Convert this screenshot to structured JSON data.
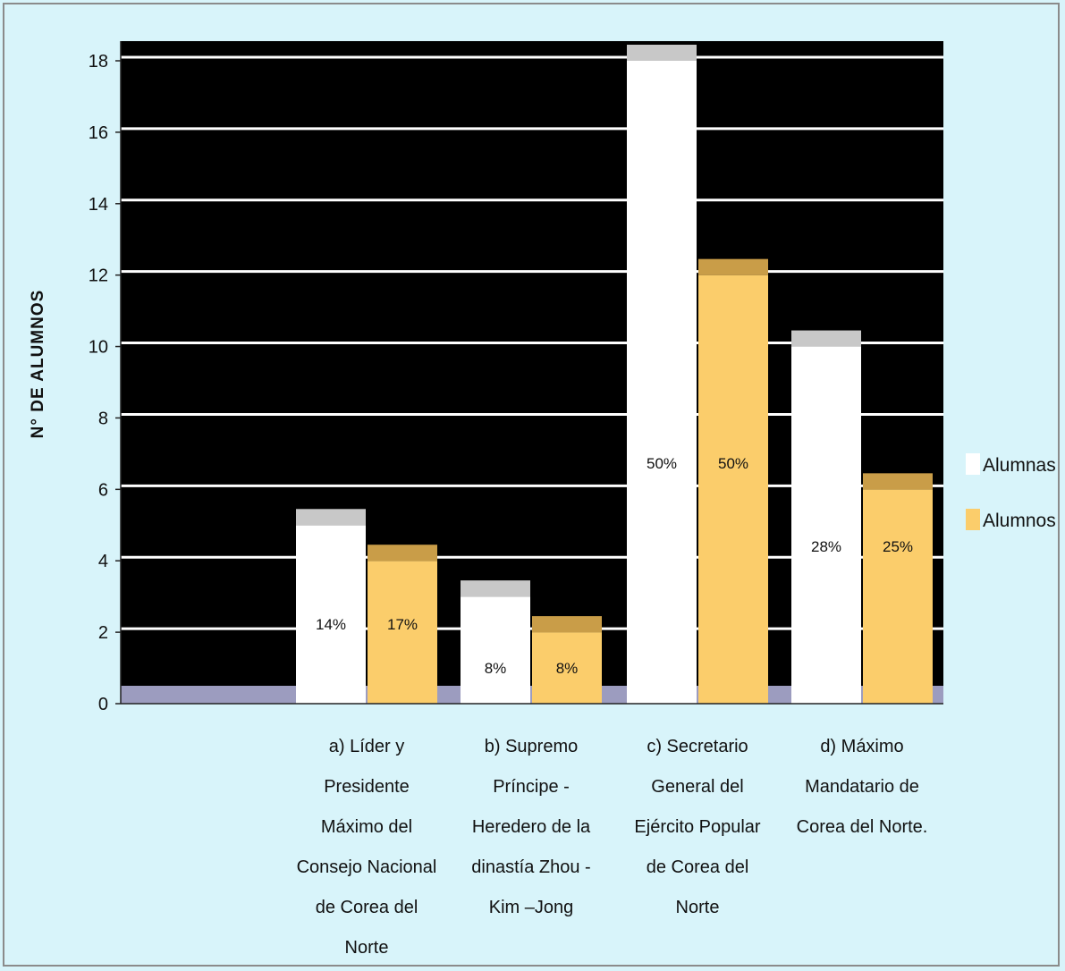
{
  "chart_data": {
    "type": "bar",
    "ylabel": "N° DE ALUMNOS",
    "ylim": [
      0,
      18
    ],
    "yticks": [
      "0",
      "2",
      "4",
      "6",
      "8",
      "10",
      "12",
      "14",
      "16",
      "18"
    ],
    "grid": true,
    "legend_position": "right",
    "categories": [
      [
        "a) Líder y",
        "Presidente",
        "Máximo del",
        "Consejo Nacional",
        "de Corea del",
        "Norte"
      ],
      [
        "b) Supremo",
        "Príncipe -",
        "Heredero de la",
        "dinastía Zhou -",
        "Kim –Jong"
      ],
      [
        "c) Secretario",
        "General del",
        "Ejército Popular",
        "de Corea del",
        "Norte"
      ],
      [
        "d) Máximo",
        "Mandatario de",
        "Corea del Norte."
      ]
    ],
    "series": [
      {
        "name": "Alumnas",
        "color": "#ffffff",
        "top_color": "#c8c8c8",
        "values": [
          5,
          3,
          18,
          10
        ],
        "labels": [
          "14%",
          "8%",
          "50%",
          "28%"
        ]
      },
      {
        "name": "Alumnos",
        "color": "#fbcd6b",
        "top_color": "#c99d48",
        "values": [
          4,
          2,
          12,
          6
        ],
        "labels": [
          "17%",
          "8%",
          "50%",
          "25%"
        ]
      }
    ],
    "colors": {
      "plot_background": "#000000",
      "gridline": "#ffffff",
      "floor": "#9c9cbf",
      "page_background": "#d8f4fa"
    }
  }
}
